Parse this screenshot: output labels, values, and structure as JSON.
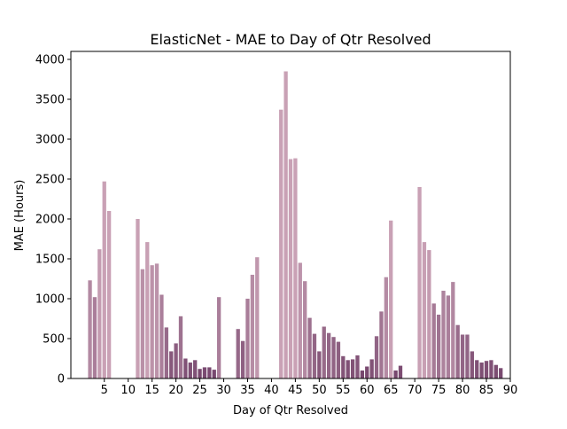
{
  "chart_data": {
    "type": "bar",
    "title": "ElasticNet - MAE to Day of Qtr Resolved",
    "xlabel": "Day of Qtr Resolved",
    "ylabel": "MAE (Hours)",
    "xlim": [
      -2,
      90
    ],
    "ylim": [
      0,
      4100
    ],
    "xticks": [
      5,
      10,
      15,
      20,
      25,
      30,
      35,
      40,
      45,
      50,
      55,
      60,
      65,
      70,
      75,
      80,
      85,
      90
    ],
    "yticks": [
      0,
      500,
      1000,
      1500,
      2000,
      2500,
      3000,
      3500,
      4000
    ],
    "grid": false,
    "legend": "none",
    "colors": {
      "light": "#c9a1b5",
      "dark": "#6e3d66"
    },
    "bars": [
      {
        "x": 2,
        "y": 1230
      },
      {
        "x": 3,
        "y": 1020
      },
      {
        "x": 4,
        "y": 1620
      },
      {
        "x": 5,
        "y": 2470
      },
      {
        "x": 6,
        "y": 2100
      },
      {
        "x": 12,
        "y": 2000
      },
      {
        "x": 13,
        "y": 1370
      },
      {
        "x": 14,
        "y": 1710
      },
      {
        "x": 15,
        "y": 1420
      },
      {
        "x": 16,
        "y": 1440
      },
      {
        "x": 17,
        "y": 1050
      },
      {
        "x": 18,
        "y": 640
      },
      {
        "x": 19,
        "y": 340
      },
      {
        "x": 20,
        "y": 440
      },
      {
        "x": 21,
        "y": 780
      },
      {
        "x": 22,
        "y": 250
      },
      {
        "x": 23,
        "y": 200
      },
      {
        "x": 24,
        "y": 230
      },
      {
        "x": 25,
        "y": 120
      },
      {
        "x": 26,
        "y": 140
      },
      {
        "x": 27,
        "y": 140
      },
      {
        "x": 28,
        "y": 110
      },
      {
        "x": 29,
        "y": 1020
      },
      {
        "x": 33,
        "y": 620
      },
      {
        "x": 34,
        "y": 470
      },
      {
        "x": 35,
        "y": 1000
      },
      {
        "x": 36,
        "y": 1300
      },
      {
        "x": 37,
        "y": 1520
      },
      {
        "x": 42,
        "y": 3370
      },
      {
        "x": 43,
        "y": 3850
      },
      {
        "x": 44,
        "y": 2750
      },
      {
        "x": 45,
        "y": 2760
      },
      {
        "x": 46,
        "y": 1450
      },
      {
        "x": 47,
        "y": 1220
      },
      {
        "x": 48,
        "y": 760
      },
      {
        "x": 49,
        "y": 560
      },
      {
        "x": 50,
        "y": 340
      },
      {
        "x": 51,
        "y": 650
      },
      {
        "x": 52,
        "y": 570
      },
      {
        "x": 53,
        "y": 520
      },
      {
        "x": 54,
        "y": 460
      },
      {
        "x": 55,
        "y": 280
      },
      {
        "x": 56,
        "y": 230
      },
      {
        "x": 57,
        "y": 240
      },
      {
        "x": 58,
        "y": 290
      },
      {
        "x": 59,
        "y": 100
      },
      {
        "x": 60,
        "y": 150
      },
      {
        "x": 61,
        "y": 240
      },
      {
        "x": 62,
        "y": 530
      },
      {
        "x": 63,
        "y": 840
      },
      {
        "x": 64,
        "y": 1270
      },
      {
        "x": 65,
        "y": 1980
      },
      {
        "x": 66,
        "y": 100
      },
      {
        "x": 67,
        "y": 160
      },
      {
        "x": 71,
        "y": 2400
      },
      {
        "x": 72,
        "y": 1710
      },
      {
        "x": 73,
        "y": 1610
      },
      {
        "x": 74,
        "y": 940
      },
      {
        "x": 75,
        "y": 800
      },
      {
        "x": 76,
        "y": 1100
      },
      {
        "x": 77,
        "y": 1040
      },
      {
        "x": 78,
        "y": 1210
      },
      {
        "x": 79,
        "y": 670
      },
      {
        "x": 80,
        "y": 550
      },
      {
        "x": 81,
        "y": 550
      },
      {
        "x": 82,
        "y": 340
      },
      {
        "x": 83,
        "y": 230
      },
      {
        "x": 84,
        "y": 200
      },
      {
        "x": 85,
        "y": 220
      },
      {
        "x": 86,
        "y": 230
      },
      {
        "x": 87,
        "y": 170
      },
      {
        "x": 88,
        "y": 130
      }
    ]
  }
}
